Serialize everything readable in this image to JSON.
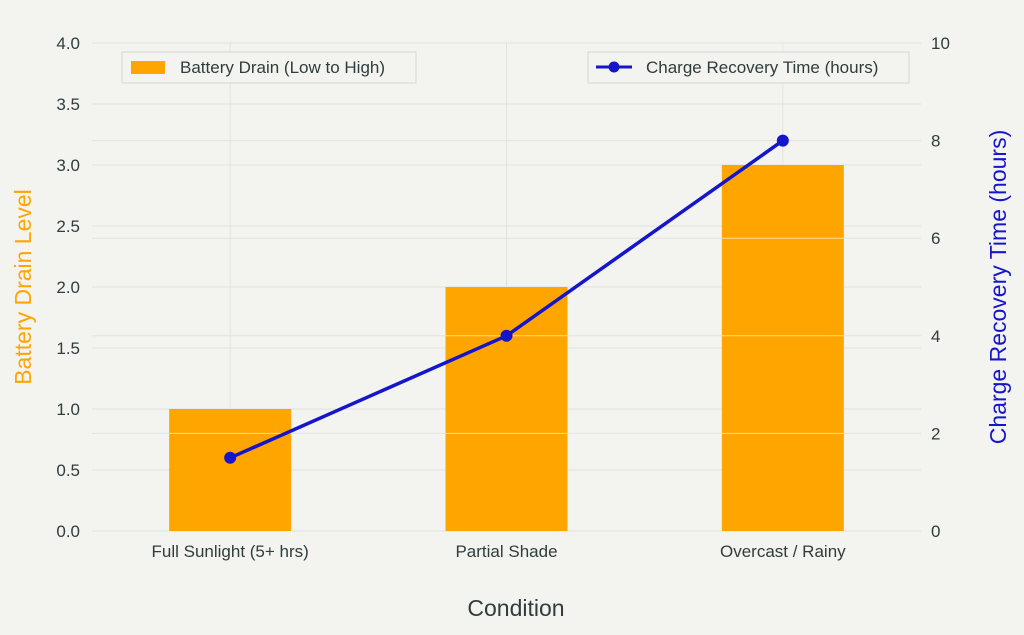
{
  "chart_data": {
    "type": "bar+line",
    "categories": [
      "Full Sunlight (5+ hrs)",
      "Partial Shade",
      "Overcast / Rainy"
    ],
    "series": [
      {
        "name": "Battery Drain (Low to High)",
        "type": "bar",
        "axis": "left",
        "color": "#FFA500",
        "values": [
          1.0,
          2.0,
          3.0
        ]
      },
      {
        "name": "Charge Recovery Time (hours)",
        "type": "line",
        "axis": "right",
        "color": "#1515CC",
        "values": [
          1.5,
          4.0,
          8.0
        ]
      }
    ],
    "xlabel": "Condition",
    "ylabel_left": "Battery Drain Level",
    "ylabel_right": "Charge Recovery Time (hours)",
    "ylim_left": [
      0,
      4
    ],
    "yticks_left": [
      "0.0",
      "0.5",
      "1.0",
      "1.5",
      "2.0",
      "2.5",
      "3.0",
      "3.5",
      "4.0"
    ],
    "ylim_right": [
      0,
      10
    ],
    "yticks_right": [
      "0",
      "2",
      "4",
      "6",
      "8",
      "10"
    ],
    "grid": true,
    "legend_bar_placement": "top-left",
    "legend_line_placement": "top-right"
  }
}
